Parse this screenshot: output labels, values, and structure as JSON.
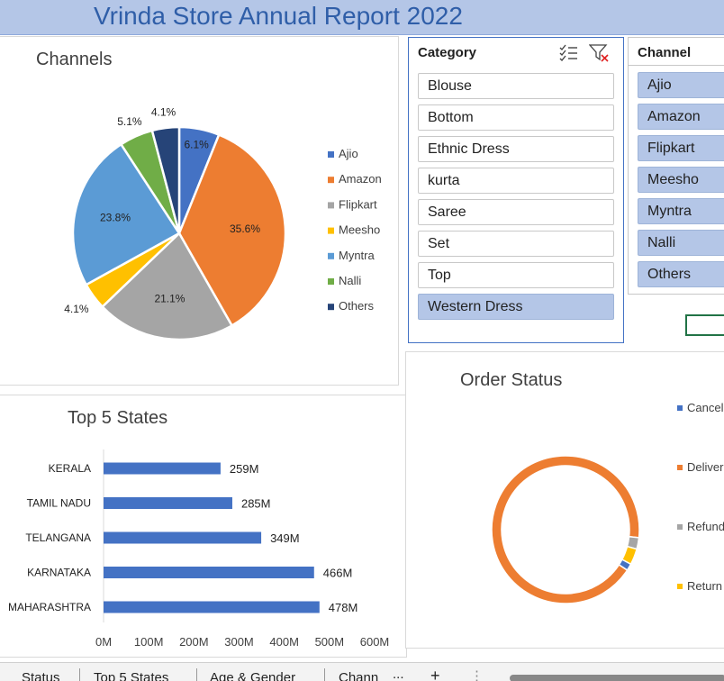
{
  "report": {
    "title": "Vrinda Store Annual Report 2022"
  },
  "channels_chart": {
    "title": "Channels"
  },
  "states_chart": {
    "title": "Top 5 States"
  },
  "order_status_chart": {
    "title": "Order Status"
  },
  "category_slicer": {
    "header": "Category",
    "items": [
      {
        "label": "Blouse",
        "selected": false
      },
      {
        "label": "Bottom",
        "selected": false
      },
      {
        "label": "Ethnic Dress",
        "selected": false
      },
      {
        "label": "kurta",
        "selected": false
      },
      {
        "label": "Saree",
        "selected": false
      },
      {
        "label": "Set",
        "selected": false
      },
      {
        "label": "Top",
        "selected": false
      },
      {
        "label": "Western Dress",
        "selected": true
      }
    ]
  },
  "channel_slicer": {
    "header": "Channel",
    "items": [
      {
        "label": "Ajio",
        "selected": true
      },
      {
        "label": "Amazon",
        "selected": true
      },
      {
        "label": "Flipkart",
        "selected": true
      },
      {
        "label": "Meesho",
        "selected": true
      },
      {
        "label": "Myntra",
        "selected": true
      },
      {
        "label": "Nalli",
        "selected": true
      },
      {
        "label": "Others",
        "selected": true
      }
    ]
  },
  "sheet_tabs": [
    "Status",
    "Top 5 States",
    "Age & Gender",
    "Chann"
  ],
  "sheet_tabs_more": "...",
  "sheet_tabs_add": "+",
  "chart_data": [
    {
      "type": "pie",
      "title": "Channels",
      "categories": [
        "Ajio",
        "Amazon",
        "Flipkart",
        "Meesho",
        "Myntra",
        "Nalli",
        "Others"
      ],
      "values": [
        6.1,
        35.6,
        21.1,
        4.1,
        23.8,
        5.1,
        4.1
      ],
      "labels": [
        "6.1%",
        "35.6%",
        "21.1%",
        "4.1%",
        "23.8%",
        "5.1%",
        "4.1%"
      ],
      "colors": [
        "#4472c4",
        "#ed7d31",
        "#a5a5a5",
        "#ffc000",
        "#5b9bd5",
        "#70ad47",
        "#264478"
      ],
      "legend": "right"
    },
    {
      "type": "bar",
      "title": "Top 5 States",
      "orientation": "horizontal",
      "categories": [
        "KERALA",
        "TAMIL NADU",
        "TELANGANA",
        "KARNATAKA",
        "MAHARASHTRA"
      ],
      "values": [
        259,
        285,
        349,
        466,
        478
      ],
      "labels": [
        "259M",
        "285M",
        "349M",
        "466M",
        "478M"
      ],
      "xticks": [
        "0M",
        "100M",
        "200M",
        "300M",
        "400M",
        "500M",
        "600M"
      ],
      "xlim": [
        0,
        600
      ],
      "color": "#4472c4"
    },
    {
      "type": "pie",
      "subtype": "doughnut",
      "title": "Order Status",
      "categories": [
        "Cancell",
        "Deliver",
        "Refund",
        "Return"
      ],
      "values": [
        1.5,
        92.5,
        2.5,
        3.5
      ],
      "colors": [
        "#4472c4",
        "#ed7d31",
        "#a5a5a5",
        "#ffc000"
      ],
      "legend": "right"
    }
  ]
}
